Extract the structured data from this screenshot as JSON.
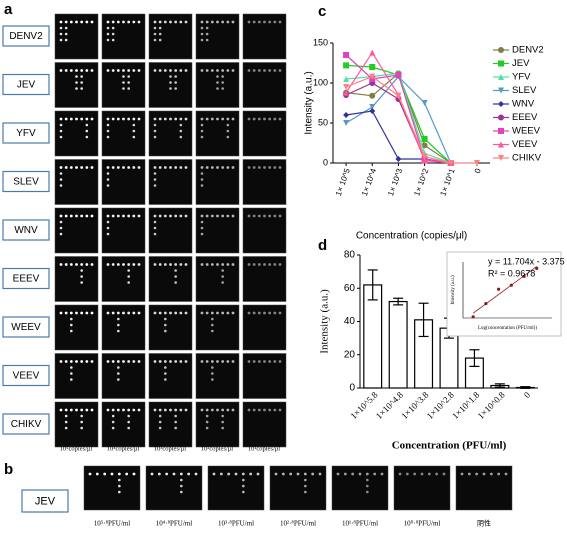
{
  "panel_labels": [
    "a",
    "b",
    "c",
    "d"
  ],
  "panel_a": {
    "rows": [
      "DENV2",
      "JEV",
      "YFV",
      "SLEV",
      "WNV",
      "EEEV",
      "WEEV",
      "VEEV",
      "CHIKV"
    ],
    "columns": [
      "10⁵copies/μl",
      "10⁴copies/μl",
      "10³copies/μl",
      "10²copies/μl",
      "10¹copies/μl"
    ]
  },
  "panel_b": {
    "row": "JEV",
    "columns": [
      "10⁵·⁸PFU/ml",
      "10⁴·⁸PFU/ml",
      "10³·⁸PFU/ml",
      "10²·⁸PFU/ml",
      "10¹·⁸PFU/ml",
      "10⁰·⁸PFU/ml",
      "阴性"
    ]
  },
  "chart_data": [
    {
      "type": "line",
      "ylabel": "Intensity (a.u.)",
      "xlabel": "Concentration (copies/μl)",
      "categories": [
        "1× 10^5",
        "1× 10^4",
        "1× 10^3",
        "1× 10^2",
        "1× 10^1",
        "0"
      ],
      "ylim": [
        0,
        150
      ],
      "yticks": [
        0,
        50,
        100,
        150
      ],
      "series": [
        {
          "name": "DENV2",
          "color": "#7f7f3f",
          "values": [
            88,
            84,
            112,
            22,
            0,
            null
          ]
        },
        {
          "name": "JEV",
          "color": "#22cc22",
          "values": [
            122,
            120,
            110,
            30,
            0,
            null
          ]
        },
        {
          "name": "YFV",
          "color": "#55ddaa",
          "values": [
            105,
            108,
            112,
            12,
            0,
            null
          ]
        },
        {
          "name": "SLEV",
          "color": "#5599cc",
          "values": [
            50,
            70,
            108,
            75,
            0,
            null
          ]
        },
        {
          "name": "WNV",
          "color": "#333399",
          "values": [
            60,
            65,
            5,
            5,
            0,
            null
          ]
        },
        {
          "name": "EEEV",
          "color": "#993399",
          "values": [
            85,
            100,
            80,
            5,
            0,
            null
          ]
        },
        {
          "name": "WEEV",
          "color": "#dd44bb",
          "values": [
            135,
            105,
            110,
            5,
            0,
            null
          ]
        },
        {
          "name": "VEEV",
          "color": "#ff5599",
          "values": [
            88,
            138,
            85,
            3,
            0,
            null
          ]
        },
        {
          "name": "CHIKV",
          "color": "#ff8080",
          "values": [
            95,
            108,
            84,
            8,
            0,
            0
          ]
        }
      ]
    },
    {
      "type": "bar",
      "ylabel": "Intensity (a.u.)",
      "xlabel": "Concentration (PFU/ml)",
      "categories": [
        "1×10^5.8",
        "1×10^4.8",
        "1×10^3.8",
        "1×10^2.8",
        "1×10^1.8",
        "1×10^0.8",
        "0"
      ],
      "values": [
        62,
        52,
        41,
        36,
        18,
        1.5,
        0.3
      ],
      "errors": [
        9,
        2,
        10,
        6,
        5,
        1,
        0.5
      ],
      "color": "#ffffff",
      "ylim": [
        0,
        80
      ],
      "yticks": [
        0,
        20,
        40,
        60,
        80
      ]
    },
    {
      "type": "scatter",
      "ylabel": "Intensity (a.u.)",
      "xlabel": "Log(concentration (PFU/ml))",
      "x": [
        0.8,
        1.8,
        2.8,
        3.8,
        4.8,
        5.8
      ],
      "values": [
        1.5,
        18,
        36,
        41,
        52,
        62
      ],
      "color": "#8b1a1a",
      "xlim": [
        0,
        7
      ],
      "ylim": [
        0,
        70
      ],
      "trendline": {
        "slope": 11.704,
        "intercept": -3.375
      },
      "annotations": [
        "y = 11.704x - 3.375",
        "R² = 0.9678"
      ]
    }
  ]
}
